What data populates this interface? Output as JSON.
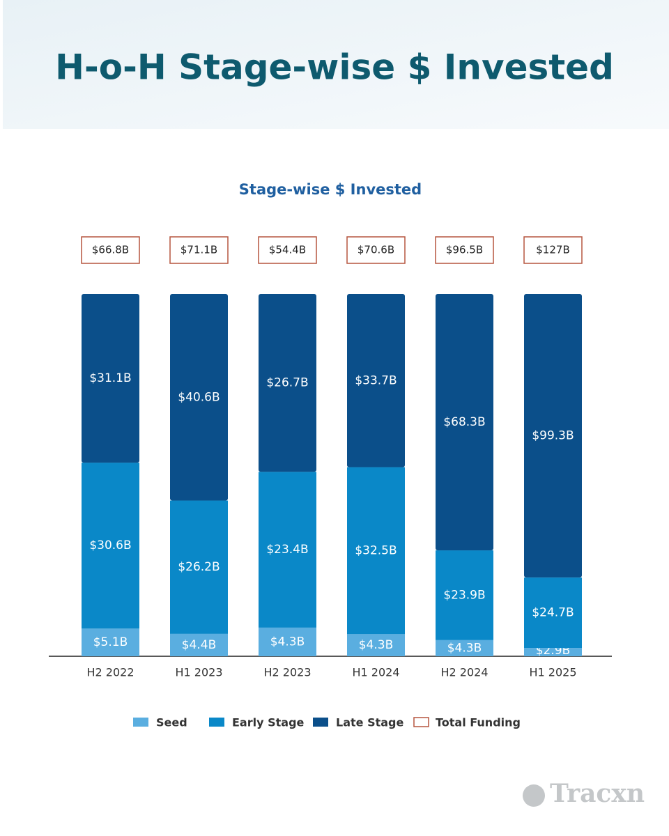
{
  "header": {
    "title": "H-o-H Stage-wise $ Invested"
  },
  "chart_data": {
    "type": "bar",
    "stacked": true,
    "normalized": true,
    "title": "Stage-wise $ Invested",
    "categories": [
      "H2 2022",
      "H1 2023",
      "H2 2023",
      "H1 2024",
      "H2 2024",
      "H1 2025"
    ],
    "series": [
      {
        "name": "Seed",
        "color": "#5aaee0",
        "values": [
          5.1,
          4.4,
          4.3,
          4.3,
          4.3,
          2.9
        ],
        "value_labels": [
          "$5.1B",
          "$4.4B",
          "$4.3B",
          "$4.3B",
          "$4.3B",
          "$2.9B"
        ]
      },
      {
        "name": "Early Stage",
        "color": "#0a88c8",
        "values": [
          30.6,
          26.2,
          23.4,
          32.5,
          23.9,
          24.7
        ],
        "value_labels": [
          "$30.6B",
          "$26.2B",
          "$23.4B",
          "$32.5B",
          "$23.9B",
          "$24.7B"
        ]
      },
      {
        "name": "Late Stage",
        "color": "#0b4f8a",
        "values": [
          31.1,
          40.6,
          26.7,
          33.7,
          68.3,
          99.3
        ],
        "value_labels": [
          "$31.1B",
          "$40.6B",
          "$26.7B",
          "$33.7B",
          "$68.3B",
          "$99.3B"
        ]
      }
    ],
    "totals": {
      "name": "Total Funding",
      "color": "#b5553f",
      "values": [
        66.8,
        71.1,
        54.4,
        70.6,
        96.5,
        127
      ],
      "value_labels": [
        "$66.8B",
        "$71.1B",
        "$54.4B",
        "$70.6B",
        "$96.5B",
        "$127B"
      ]
    }
  },
  "watermark": "Tracxn"
}
